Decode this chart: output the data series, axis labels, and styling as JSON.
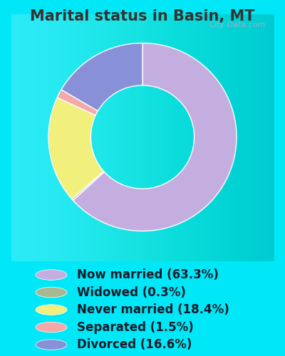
{
  "title": "Marital status in Basin, MT",
  "slices": [
    63.3,
    0.3,
    18.4,
    1.5,
    16.6
  ],
  "labels": [
    "Now married (63.3%)",
    "Widowed (0.3%)",
    "Never married (18.4%)",
    "Separated (1.5%)",
    "Divorced (16.6%)"
  ],
  "colors": [
    "#c4aee0",
    "#a8b890",
    "#f2f07c",
    "#f4a8a8",
    "#8890d8"
  ],
  "bg_outer": "#00e8f8",
  "bg_inner_color": "#e8f4e8",
  "watermark": "City-Data.com",
  "title_fontsize": 15,
  "title_color": "#333333",
  "legend_fontsize": 12,
  "donut_width": 0.45,
  "startangle": 90
}
